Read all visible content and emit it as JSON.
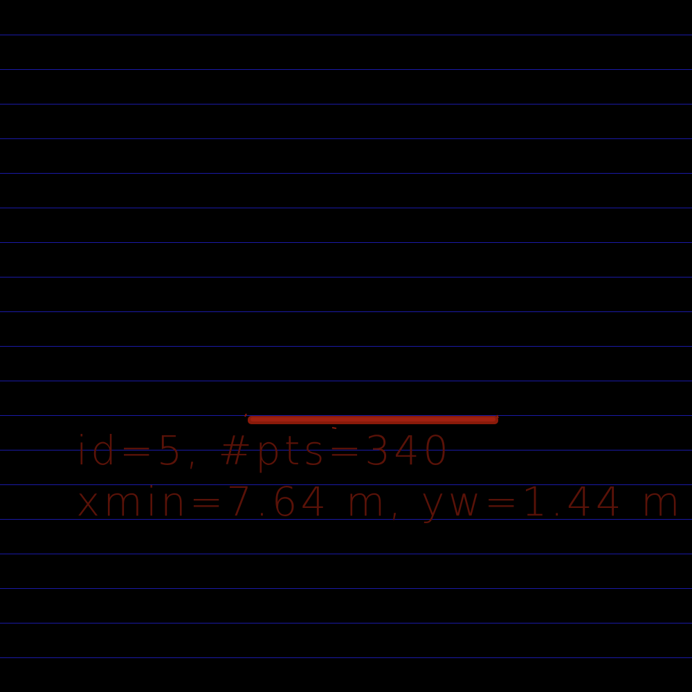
{
  "colors": {
    "background": "#000000",
    "grid": "#1a1aa8",
    "cluster": "#8a1a0a",
    "text": "#5a1208"
  },
  "cluster": {
    "id_line": "id=5, #pts=340",
    "extent_line": "xmin=7.64 m, yw=1.44 m"
  }
}
